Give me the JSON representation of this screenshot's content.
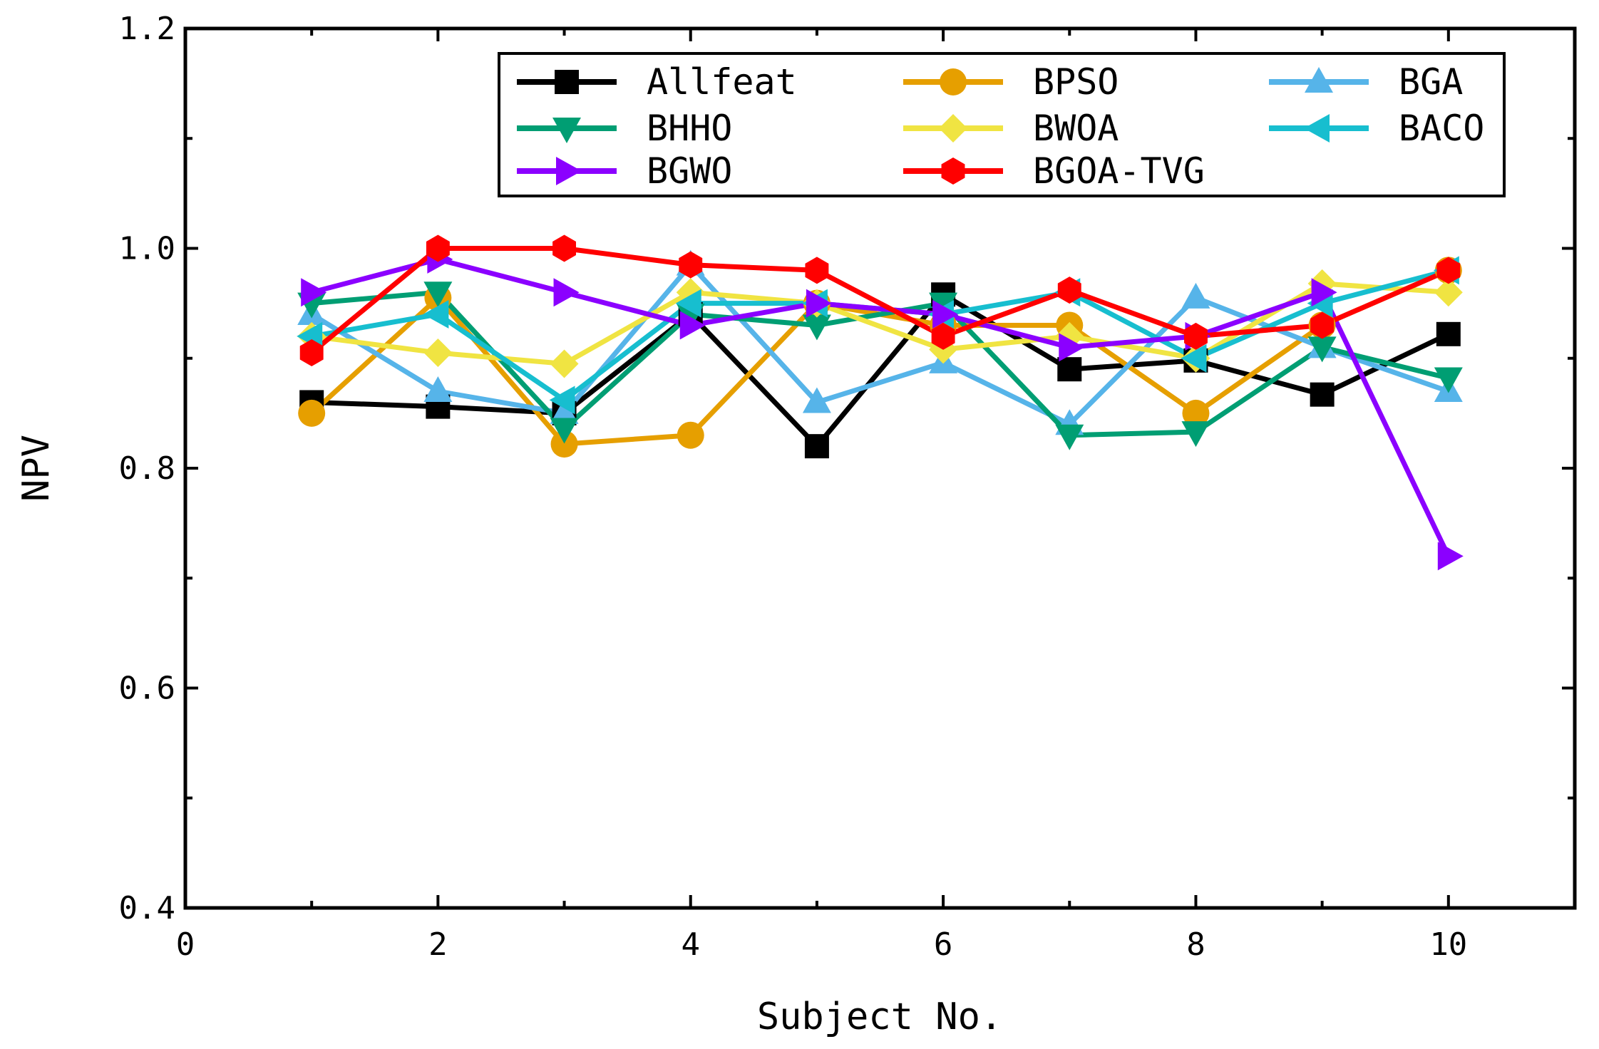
{
  "chart_data": {
    "type": "line",
    "title": "",
    "xlabel": "Subject No.",
    "ylabel": "NPV",
    "xlim": [
      0,
      11
    ],
    "ylim": [
      0.4,
      1.2
    ],
    "xticks": [
      0,
      2,
      4,
      6,
      8,
      10
    ],
    "xtick_labels": [
      "0",
      "2",
      "4",
      "6",
      "8",
      "10"
    ],
    "yticks": [
      0.4,
      0.6,
      0.8,
      1.0,
      1.2
    ],
    "ytick_labels": [
      "0.4",
      "0.6",
      "0.8",
      "1.0",
      "1.2"
    ],
    "grid": false,
    "legend_position": "top-right",
    "x": [
      1,
      2,
      3,
      4,
      5,
      6,
      7,
      8,
      9,
      10
    ],
    "series": [
      {
        "name": "Allfeat",
        "color": "#000000",
        "marker": "square",
        "values": [
          0.86,
          0.856,
          0.85,
          0.94,
          0.82,
          0.958,
          0.89,
          0.898,
          0.867,
          0.922
        ]
      },
      {
        "name": "BPSO",
        "color": "#E69F00",
        "marker": "circle",
        "values": [
          0.85,
          0.955,
          0.822,
          0.83,
          0.95,
          0.93,
          0.93,
          0.85,
          0.93,
          0.98
        ]
      },
      {
        "name": "BGA",
        "color": "#56B4E9",
        "marker": "triangle-up",
        "values": [
          0.94,
          0.87,
          0.85,
          0.985,
          0.86,
          0.896,
          0.84,
          0.955,
          0.91,
          0.87
        ]
      },
      {
        "name": "BHHO",
        "color": "#009E73",
        "marker": "triangle-down",
        "values": [
          0.95,
          0.96,
          0.836,
          0.94,
          0.93,
          0.95,
          0.83,
          0.833,
          0.91,
          0.882
        ]
      },
      {
        "name": "BWOA",
        "color": "#F0E442",
        "marker": "diamond",
        "values": [
          0.92,
          0.905,
          0.895,
          0.96,
          0.95,
          0.908,
          0.92,
          0.9,
          0.968,
          0.96
        ]
      },
      {
        "name": "BACO",
        "color": "#17BECF",
        "marker": "triangle-left",
        "values": [
          0.92,
          0.94,
          0.862,
          0.95,
          0.95,
          0.94,
          0.96,
          0.9,
          0.95,
          0.98
        ]
      },
      {
        "name": "BGWO",
        "color": "#8B00FF",
        "marker": "triangle-right",
        "values": [
          0.96,
          0.99,
          0.96,
          0.93,
          0.95,
          0.94,
          0.91,
          0.92,
          0.96,
          0.72
        ]
      },
      {
        "name": "BGOA-TVG",
        "color": "#FF0000",
        "marker": "hexagon",
        "values": [
          0.905,
          1.0,
          1.0,
          0.985,
          0.98,
          0.92,
          0.962,
          0.92,
          0.93,
          0.98
        ]
      }
    ],
    "legend_order": [
      [
        "Allfeat",
        "BPSO",
        "BGA"
      ],
      [
        "BHHO",
        "BWOA",
        "BACO"
      ],
      [
        "BGWO",
        "BGOA-TVG"
      ]
    ]
  }
}
